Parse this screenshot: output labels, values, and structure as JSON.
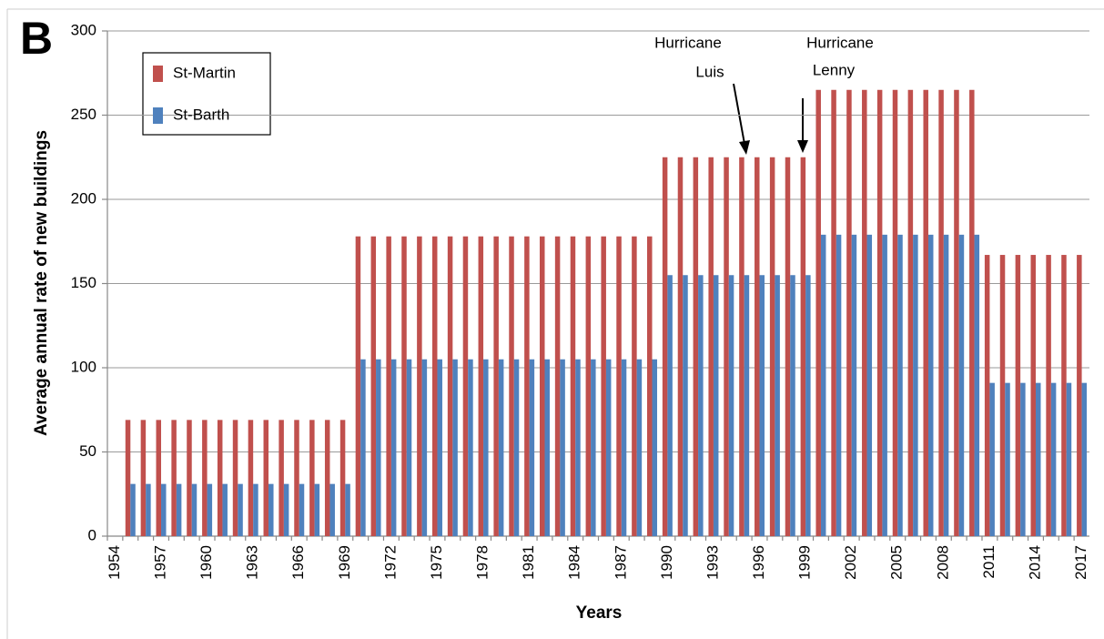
{
  "chart_data": {
    "type": "bar",
    "panel_label": "B",
    "y_label": "Average annual rate of new buildings",
    "x_label": "Years",
    "annotations": [
      {
        "lines": [
          "Hurricane",
          "Luis"
        ]
      },
      {
        "lines": [
          "Hurricane",
          "Lenny"
        ]
      }
    ],
    "categories": [
      "1954",
      null,
      null,
      "1957",
      null,
      null,
      "1960",
      null,
      null,
      "1963",
      null,
      null,
      "1966",
      null,
      null,
      "1969",
      null,
      null,
      "1972",
      null,
      null,
      "1975",
      null,
      null,
      "1978",
      null,
      null,
      "1981",
      null,
      null,
      "1984",
      null,
      null,
      "1987",
      null,
      null,
      "1990",
      null,
      null,
      "1993",
      null,
      null,
      "1996",
      null,
      null,
      "1999",
      null,
      null,
      "2002",
      null,
      null,
      "2005",
      null,
      null,
      "2008",
      null,
      null,
      "2011",
      null,
      null,
      "2014",
      null,
      null,
      "2017"
    ],
    "series": [
      {
        "name": "St-Martin",
        "color": "#c0504d",
        "values": [
          null,
          69,
          69,
          69,
          69,
          69,
          69,
          69,
          69,
          69,
          69,
          69,
          69,
          69,
          69,
          69,
          178,
          178,
          178,
          178,
          178,
          178,
          178,
          178,
          178,
          178,
          178,
          178,
          178,
          178,
          178,
          178,
          178,
          178,
          178,
          178,
          225,
          225,
          225,
          225,
          225,
          225,
          225,
          225,
          225,
          225,
          265,
          265,
          265,
          265,
          265,
          265,
          265,
          265,
          265,
          265,
          265,
          167,
          167,
          167,
          167,
          167,
          167,
          167
        ]
      },
      {
        "name": "St-Barth",
        "color": "#4f81bd",
        "values": [
          null,
          31,
          31,
          31,
          31,
          31,
          31,
          31,
          31,
          31,
          31,
          31,
          31,
          31,
          31,
          31,
          105,
          105,
          105,
          105,
          105,
          105,
          105,
          105,
          105,
          105,
          105,
          105,
          105,
          105,
          105,
          105,
          105,
          105,
          105,
          105,
          155,
          155,
          155,
          155,
          155,
          155,
          155,
          155,
          155,
          155,
          179,
          179,
          179,
          179,
          179,
          179,
          179,
          179,
          179,
          179,
          179,
          91,
          91,
          91,
          91,
          91,
          91,
          91
        ]
      }
    ],
    "ylim": [
      0,
      300
    ],
    "yticks": [
      0,
      50,
      100,
      150,
      200,
      250,
      300
    ],
    "grid": true,
    "legend": "upper left"
  }
}
